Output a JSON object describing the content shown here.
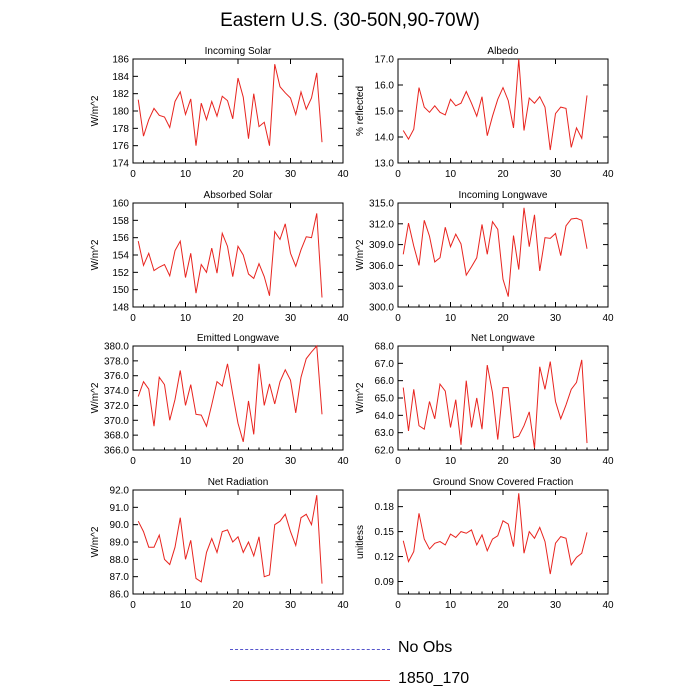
{
  "title": "Eastern U.S. (30-50N,90-70W)",
  "colors": {
    "series": "#e8241f",
    "noobs": "#5555cc",
    "axis": "#000000"
  },
  "legend": [
    {
      "label": "No Obs",
      "style": "dashed"
    },
    {
      "label": "1850_170",
      "style": "solid"
    }
  ],
  "chart_data": [
    {
      "type": "line",
      "title": "Incoming Solar",
      "ylabel": "W/m^2",
      "xlim": [
        0,
        40
      ],
      "ylim": [
        174,
        186
      ],
      "xticks": [
        "0",
        "10",
        "20",
        "30",
        "40"
      ],
      "yticks": [
        "174",
        "176",
        "178",
        "180",
        "182",
        "184",
        "186"
      ],
      "series": [
        {
          "name": "1850_170",
          "x": [
            1,
            2,
            3,
            4,
            5,
            6,
            7,
            8,
            9,
            10,
            11,
            12,
            13,
            14,
            15,
            16,
            17,
            18,
            19,
            20,
            21,
            22,
            23,
            24,
            25,
            26,
            27,
            28,
            29,
            30,
            31,
            32,
            33,
            34,
            35,
            36
          ],
          "values": [
            181.3,
            177.1,
            179.0,
            180.3,
            179.5,
            179.3,
            178.1,
            181.1,
            182.2,
            179.6,
            181.4,
            176.0,
            180.9,
            179.0,
            181.1,
            179.4,
            181.7,
            181.2,
            179.1,
            183.8,
            181.6,
            176.8,
            182.0,
            178.2,
            178.7,
            176.0,
            185.4,
            182.8,
            182.1,
            181.5,
            179.6,
            182.2,
            180.2,
            181.5,
            184.4,
            176.4
          ]
        }
      ]
    },
    {
      "type": "line",
      "title": "Albedo",
      "ylabel": "% reflected",
      "xlim": [
        0,
        40
      ],
      "ylim": [
        13,
        17
      ],
      "xticks": [
        "0",
        "10",
        "20",
        "30",
        "40"
      ],
      "yticks": [
        "13.0",
        "14.0",
        "15.0",
        "16.0",
        "17.0"
      ],
      "series": [
        {
          "name": "1850_170",
          "x": [
            1,
            2,
            3,
            4,
            5,
            6,
            7,
            8,
            9,
            10,
            11,
            12,
            13,
            14,
            15,
            16,
            17,
            18,
            19,
            20,
            21,
            22,
            23,
            24,
            25,
            26,
            27,
            28,
            29,
            30,
            31,
            32,
            33,
            34,
            35,
            36
          ],
          "values": [
            14.25,
            13.92,
            14.3,
            15.9,
            15.15,
            14.95,
            15.2,
            14.95,
            14.85,
            15.45,
            15.2,
            15.3,
            15.75,
            15.3,
            14.8,
            15.55,
            14.05,
            14.8,
            15.45,
            15.9,
            15.4,
            14.35,
            17.0,
            14.25,
            15.5,
            15.3,
            15.55,
            15.15,
            13.5,
            14.9,
            15.15,
            15.1,
            13.6,
            14.35,
            13.95,
            15.6
          ]
        }
      ]
    },
    {
      "type": "line",
      "title": "Absorbed Solar",
      "ylabel": "W/m^2",
      "xlim": [
        0,
        40
      ],
      "ylim": [
        148,
        160
      ],
      "xticks": [
        "0",
        "10",
        "20",
        "30",
        "40"
      ],
      "yticks": [
        "148",
        "150",
        "152",
        "154",
        "156",
        "158",
        "160"
      ],
      "series": [
        {
          "name": "1850_170",
          "x": [
            1,
            2,
            3,
            4,
            5,
            6,
            7,
            8,
            9,
            10,
            11,
            12,
            13,
            14,
            15,
            16,
            17,
            18,
            19,
            20,
            21,
            22,
            23,
            24,
            25,
            26,
            27,
            28,
            29,
            30,
            31,
            32,
            33,
            34,
            35,
            36
          ],
          "values": [
            155.6,
            152.8,
            154.2,
            152.2,
            152.6,
            152.9,
            151.6,
            154.5,
            155.6,
            151.4,
            154.2,
            149.6,
            152.9,
            152.0,
            154.8,
            151.9,
            156.5,
            155.0,
            151.5,
            155.0,
            154.0,
            151.8,
            151.3,
            153.0,
            151.5,
            149.3,
            156.7,
            155.8,
            157.6,
            154.2,
            152.7,
            154.6,
            156.1,
            156.0,
            158.8,
            149.1
          ]
        }
      ]
    },
    {
      "type": "line",
      "title": "Incoming Longwave",
      "ylabel": "W/m^2",
      "xlim": [
        0,
        40
      ],
      "ylim": [
        300,
        315
      ],
      "xticks": [
        "0",
        "10",
        "20",
        "30",
        "40"
      ],
      "yticks": [
        "300.0",
        "303.0",
        "306.0",
        "309.0",
        "312.0",
        "315.0"
      ],
      "series": [
        {
          "name": "1850_170",
          "x": [
            1,
            2,
            3,
            4,
            5,
            6,
            7,
            8,
            9,
            10,
            11,
            12,
            13,
            14,
            15,
            16,
            17,
            18,
            19,
            20,
            21,
            22,
            23,
            24,
            25,
            26,
            27,
            28,
            29,
            30,
            31,
            32,
            33,
            34,
            35,
            36
          ],
          "values": [
            307.6,
            312.1,
            308.8,
            306.0,
            312.5,
            310.2,
            306.5,
            307.1,
            311.5,
            308.7,
            310.5,
            309.1,
            304.6,
            305.8,
            307.1,
            311.9,
            307.6,
            312.3,
            311.2,
            304.0,
            301.5,
            310.3,
            305.4,
            314.3,
            308.7,
            313.3,
            305.2,
            310.0,
            309.9,
            310.6,
            307.4,
            311.7,
            312.7,
            312.8,
            312.5,
            308.4
          ]
        }
      ]
    },
    {
      "type": "line",
      "title": "Emitted Longwave",
      "ylabel": "W/m^2",
      "xlim": [
        0,
        40
      ],
      "ylim": [
        366,
        380
      ],
      "xticks": [
        "0",
        "10",
        "20",
        "30",
        "40"
      ],
      "yticks": [
        "366.0",
        "368.0",
        "370.0",
        "372.0",
        "374.0",
        "376.0",
        "378.0",
        "380.0"
      ],
      "series": [
        {
          "name": "1850_170",
          "x": [
            1,
            2,
            3,
            4,
            5,
            6,
            7,
            8,
            9,
            10,
            11,
            12,
            13,
            14,
            15,
            16,
            17,
            18,
            19,
            20,
            21,
            22,
            23,
            24,
            25,
            26,
            27,
            28,
            29,
            30,
            31,
            32,
            33,
            34,
            35,
            36
          ],
          "values": [
            373.2,
            375.2,
            374.2,
            369.2,
            375.8,
            374.8,
            370.0,
            372.8,
            376.7,
            372.0,
            374.8,
            370.8,
            370.7,
            369.2,
            372.1,
            375.2,
            374.6,
            377.6,
            373.5,
            369.6,
            367.1,
            372.6,
            368.1,
            377.6,
            372.0,
            374.9,
            372.2,
            375.2,
            376.8,
            375.4,
            371.0,
            375.8,
            378.3,
            379.2,
            380.0,
            370.8
          ]
        }
      ]
    },
    {
      "type": "line",
      "title": "Net Longwave",
      "ylabel": "W/m^2",
      "xlim": [
        0,
        40
      ],
      "ylim": [
        62,
        68
      ],
      "xticks": [
        "0",
        "10",
        "20",
        "30",
        "40"
      ],
      "yticks": [
        "62.0",
        "63.0",
        "64.0",
        "65.0",
        "66.0",
        "67.0",
        "68.0"
      ],
      "series": [
        {
          "name": "1850_170",
          "x": [
            1,
            2,
            3,
            4,
            5,
            6,
            7,
            8,
            9,
            10,
            11,
            12,
            13,
            14,
            15,
            16,
            17,
            18,
            19,
            20,
            21,
            22,
            23,
            24,
            25,
            26,
            27,
            28,
            29,
            30,
            31,
            32,
            33,
            34,
            35,
            36
          ],
          "values": [
            65.6,
            63.1,
            65.5,
            63.4,
            63.2,
            64.8,
            63.8,
            65.8,
            65.4,
            63.3,
            64.9,
            62.3,
            66.0,
            63.3,
            65.0,
            63.2,
            66.9,
            65.3,
            62.6,
            65.6,
            65.6,
            62.7,
            62.8,
            63.4,
            64.2,
            62.1,
            66.8,
            65.5,
            67.1,
            64.8,
            63.8,
            64.6,
            65.5,
            65.9,
            67.2,
            62.4
          ]
        }
      ]
    },
    {
      "type": "line",
      "title": "Net Radiation",
      "ylabel": "W/m^2",
      "xlim": [
        0,
        40
      ],
      "ylim": [
        86,
        92
      ],
      "xticks": [
        "0",
        "10",
        "20",
        "30",
        "40"
      ],
      "yticks": [
        "86.0",
        "87.0",
        "88.0",
        "89.0",
        "90.0",
        "91.0",
        "92.0"
      ],
      "series": [
        {
          "name": "1850_170",
          "x": [
            1,
            2,
            3,
            4,
            5,
            6,
            7,
            8,
            9,
            10,
            11,
            12,
            13,
            14,
            15,
            16,
            17,
            18,
            19,
            20,
            21,
            22,
            23,
            24,
            25,
            26,
            27,
            28,
            29,
            30,
            31,
            32,
            33,
            34,
            35,
            36
          ],
          "values": [
            90.2,
            89.6,
            88.7,
            88.7,
            89.4,
            88.0,
            87.7,
            88.7,
            90.4,
            88.0,
            89.1,
            86.9,
            86.7,
            88.4,
            89.2,
            88.4,
            89.6,
            89.7,
            89.0,
            89.3,
            88.4,
            89.0,
            88.2,
            89.3,
            87.0,
            87.1,
            90.0,
            90.2,
            90.6,
            89.6,
            88.8,
            90.4,
            90.6,
            90.0,
            91.7,
            86.6
          ]
        }
      ]
    },
    {
      "type": "line",
      "title": "Ground Snow Covered Fraction",
      "ylabel": "unitless",
      "xlim": [
        0,
        40
      ],
      "ylim": [
        0.075,
        0.2
      ],
      "xticks": [
        "0",
        "10",
        "20",
        "30",
        "40"
      ],
      "yticks": [
        "0.09",
        "0.12",
        "0.15",
        "0.18"
      ],
      "series": [
        {
          "name": "1850_170",
          "x": [
            1,
            2,
            3,
            4,
            5,
            6,
            7,
            8,
            9,
            10,
            11,
            12,
            13,
            14,
            15,
            16,
            17,
            18,
            19,
            20,
            21,
            22,
            23,
            24,
            25,
            26,
            27,
            28,
            29,
            30,
            31,
            32,
            33,
            34,
            35,
            36
          ],
          "values": [
            0.139,
            0.114,
            0.126,
            0.172,
            0.141,
            0.129,
            0.136,
            0.138,
            0.134,
            0.147,
            0.143,
            0.15,
            0.148,
            0.152,
            0.134,
            0.146,
            0.127,
            0.141,
            0.145,
            0.163,
            0.159,
            0.132,
            0.196,
            0.124,
            0.15,
            0.142,
            0.155,
            0.138,
            0.099,
            0.136,
            0.144,
            0.142,
            0.11,
            0.119,
            0.124,
            0.149
          ]
        }
      ]
    }
  ]
}
